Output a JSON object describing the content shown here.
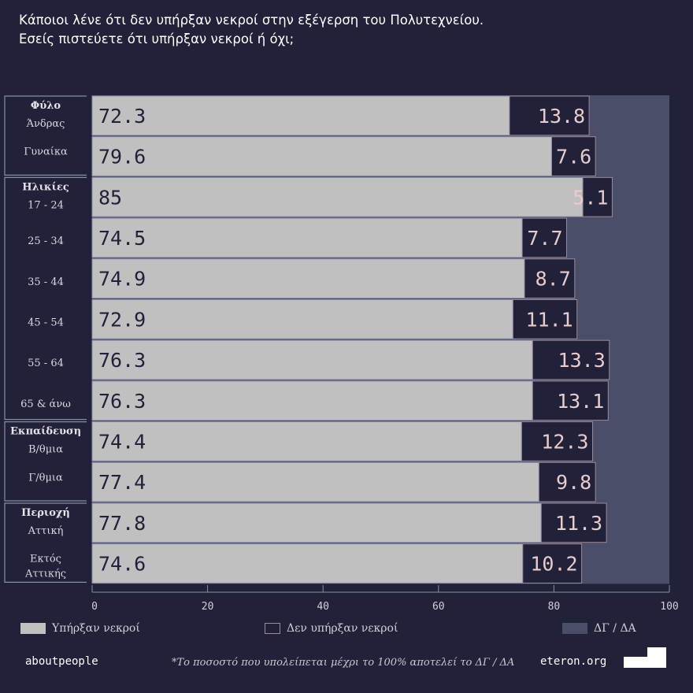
{
  "title": [
    "Κάποιοι λένε ότι δεν υπήρξαν νεκροί στην εξέγερση του Πολυτεχνείου.",
    "Εσείς πιστεύετε ότι υπήρξαν νεκροί ή όχι;"
  ],
  "colors": {
    "background": "#21223a",
    "yes": "#c0c0c0",
    "no": "#21223a",
    "no_border": "#9a8a9c",
    "dk": "#4a4e68",
    "no_text": "#e8cccc",
    "yes_text": "#21223a"
  },
  "chart_data": {
    "type": "bar",
    "stacked": true,
    "orientation": "horizontal",
    "xlim": [
      0,
      100
    ],
    "xticks": [
      "0",
      "20",
      "40",
      "60",
      "80",
      "100"
    ],
    "groups": [
      {
        "name": "Φύλο",
        "categories": [
          "Άνδρας",
          "Γυναίκα"
        ]
      },
      {
        "name": "Ηλικίες",
        "categories": [
          "17 - 24",
          "25 - 34",
          "35 - 44",
          "45 - 54",
          "55 - 64",
          "65 & άνω"
        ]
      },
      {
        "name": "Εκπαίδευση",
        "categories": [
          "Β/θμια",
          "Γ/θμια"
        ]
      },
      {
        "name": "Περιοχή",
        "categories": [
          "Αττική",
          "Εκτός Αττικής"
        ]
      }
    ],
    "series": [
      {
        "name": "Υπήρξαν νεκροί",
        "values": [
          72.3,
          79.6,
          85.0,
          74.5,
          74.9,
          72.9,
          76.3,
          76.3,
          74.4,
          77.4,
          77.8,
          74.6
        ]
      },
      {
        "name": "Δεν υπήρξαν νεκροί",
        "values": [
          13.8,
          7.6,
          5.1,
          7.7,
          8.7,
          11.1,
          13.3,
          13.1,
          12.3,
          9.8,
          11.3,
          10.2
        ]
      },
      {
        "name": "ΔΓ / ΔΑ",
        "values": "remainder to 100"
      }
    ]
  },
  "legend": {
    "yes": "Υπήρξαν νεκροί",
    "no": "Δεν υπήρξαν νεκροί",
    "dk": "ΔΓ / ΔΑ"
  },
  "footer": {
    "left": "aboutpeople",
    "note": "*Το ποσοστό που υπολείπεται μέχρι το 100% αποτελεί το ΔΓ / ΔΑ",
    "right": "eteron.org"
  }
}
